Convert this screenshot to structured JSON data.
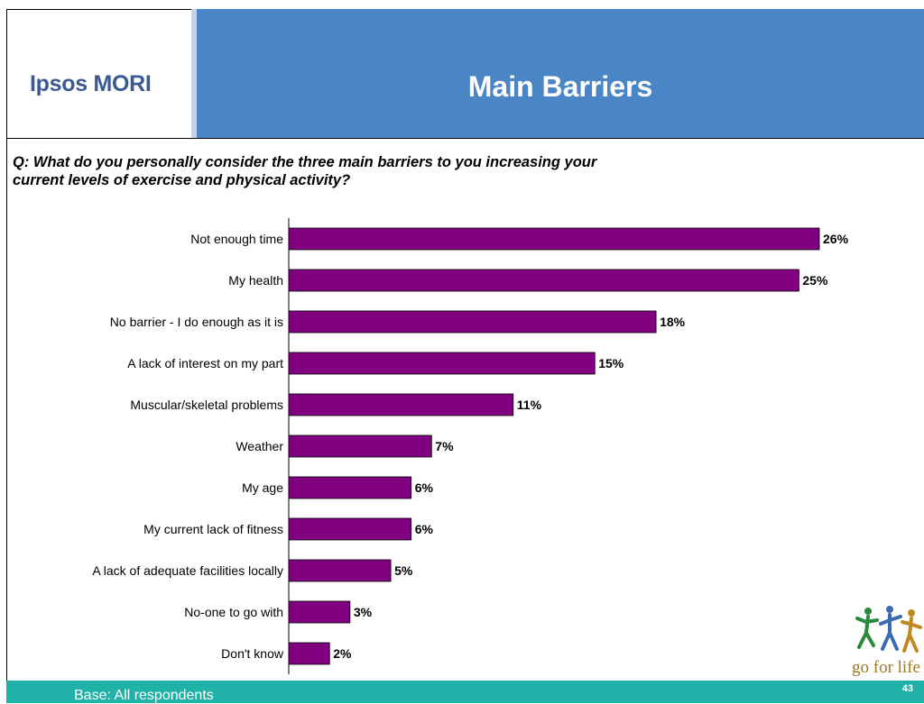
{
  "header": {
    "logo": "Ipsos MORI",
    "title": "Main Barriers"
  },
  "question": "Q: What do you personally consider  the three main barriers to you increasing your current levels of exercise and physical activity?",
  "footer": {
    "base": "Base: All respondents",
    "page_number": "43",
    "partner_logo_text": "go for life"
  },
  "colors": {
    "bar": "#800080",
    "header_bg": "#4a86c6",
    "footer_bg": "#20b2a8",
    "logo_text": "#3a5a94"
  },
  "chart_data": {
    "type": "bar",
    "orientation": "horizontal",
    "categories": [
      "Not enough time",
      "My health",
      "No barrier - I do enough as it is",
      "A lack of interest on my part",
      "Muscular/skeletal problems",
      "Weather",
      "My age",
      "My current lack of fitness",
      "A lack of adequate facilities locally",
      "No-one to go with",
      "Don't know"
    ],
    "values": [
      26,
      25,
      18,
      15,
      11,
      7,
      6,
      6,
      5,
      3,
      2
    ],
    "value_labels": [
      "26%",
      "25%",
      "18%",
      "15%",
      "11%",
      "7%",
      "6%",
      "6%",
      "5%",
      "3%",
      "2%"
    ],
    "title": "",
    "xlabel": "",
    "ylabel": "",
    "grid": false,
    "legend": "none"
  }
}
